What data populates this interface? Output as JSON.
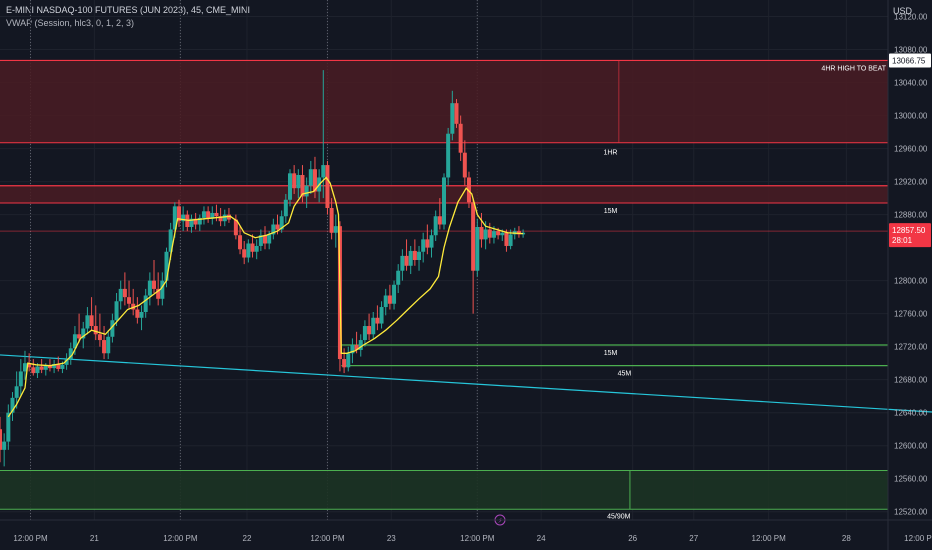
{
  "header": {
    "title": "E-MINI NASDAQ-100 FUTURES (JUN 2023), 45, CME_MINI",
    "study": "VWAP (Session, hlc3, 0, 1, 2, 3)",
    "currency": "USD"
  },
  "colors": {
    "background": "#131722",
    "up": "#26a69a",
    "down": "#ef5350",
    "vwap": "#ffeb3b",
    "resistance_fill": "#4a1c23",
    "resistance_line": "#f23645",
    "support_fill": "#1c3323",
    "support_line": "#4caf50",
    "trendline": "#26c6da",
    "price_badge": "#f23645"
  },
  "chart_data": {
    "type": "candlestick",
    "symbol": "E-MINI NASDAQ-100 FUTURES (JUN 2023)",
    "interval": "45",
    "ylim": [
      12510,
      13140
    ],
    "x_range": [
      0,
      32
    ],
    "y_ticks": [
      13120,
      13080,
      13040,
      13000,
      12960,
      12920,
      12880,
      12800,
      12760,
      12720,
      12680,
      12640,
      12600,
      12560,
      12520
    ],
    "x_ticks": [
      {
        "x": 1.1,
        "label": "12:00 PM"
      },
      {
        "x": 3.4,
        "label": "21"
      },
      {
        "x": 6.5,
        "label": "12:00 PM"
      },
      {
        "x": 8.9,
        "label": "22"
      },
      {
        "x": 11.8,
        "label": "12:00 PM"
      },
      {
        "x": 14.1,
        "label": "23"
      },
      {
        "x": 17.2,
        "label": "12:00 PM"
      },
      {
        "x": 19.5,
        "label": "24"
      },
      {
        "x": 22.8,
        "label": "26"
      },
      {
        "x": 25.0,
        "label": "27"
      },
      {
        "x": 27.7,
        "label": "12:00 PM"
      },
      {
        "x": 30.5,
        "label": "28"
      },
      {
        "x": 33.2,
        "label": "12:00 PM"
      }
    ],
    "session_lines_x": [
      1.1,
      6.5,
      11.8,
      17.2
    ],
    "current_price": "12857.50",
    "countdown": "28:01",
    "high_label_price": "13066.75",
    "zones": [
      {
        "label": "4HR HIGH TO BEAT",
        "type": "resistance",
        "y_top": 13066.75,
        "y_bottom": 12967
      },
      {
        "label": "15M",
        "type": "resistance",
        "y_top": 12915,
        "y_bottom": 12894
      }
    ],
    "zone_labels": [
      {
        "label": "1HR",
        "x": 22.0,
        "y": 12953
      },
      {
        "label": "15M",
        "x": 22.0,
        "y": 12882
      },
      {
        "label": "15M",
        "x": 22.0,
        "y": 12710
      },
      {
        "label": "45M",
        "x": 22.5,
        "y": 12685
      },
      {
        "label": "45/90M",
        "x": 22.3,
        "y": 12512
      }
    ],
    "support_lines": [
      12722,
      12697
    ],
    "support_zone": {
      "y_top": 12570,
      "y_bottom": 12523
    },
    "trendline": {
      "x1": 0,
      "y1": 12710,
      "x2": 34,
      "y2": 12640
    },
    "candles": [
      {
        "x": 0.0,
        "o": 12620,
        "h": 12635,
        "l": 12580,
        "c": 12595
      },
      {
        "x": 0.15,
        "o": 12595,
        "h": 12615,
        "l": 12575,
        "c": 12605
      },
      {
        "x": 0.3,
        "o": 12605,
        "h": 12650,
        "l": 12595,
        "c": 12640
      },
      {
        "x": 0.45,
        "o": 12640,
        "h": 12665,
        "l": 12630,
        "c": 12658
      },
      {
        "x": 0.6,
        "o": 12658,
        "h": 12690,
        "l": 12645,
        "c": 12672
      },
      {
        "x": 0.75,
        "o": 12672,
        "h": 12705,
        "l": 12660,
        "c": 12690
      },
      {
        "x": 0.9,
        "o": 12690,
        "h": 12715,
        "l": 12680,
        "c": 12700
      },
      {
        "x": 1.05,
        "o": 12700,
        "h": 12712,
        "l": 12690,
        "c": 12695
      },
      {
        "x": 1.2,
        "o": 12695,
        "h": 12705,
        "l": 12685,
        "c": 12688
      },
      {
        "x": 1.35,
        "o": 12688,
        "h": 12700,
        "l": 12682,
        "c": 12696
      },
      {
        "x": 1.5,
        "o": 12696,
        "h": 12705,
        "l": 12688,
        "c": 12692
      },
      {
        "x": 1.65,
        "o": 12692,
        "h": 12700,
        "l": 12685,
        "c": 12697
      },
      {
        "x": 1.8,
        "o": 12697,
        "h": 12705,
        "l": 12690,
        "c": 12694
      },
      {
        "x": 1.95,
        "o": 12694,
        "h": 12704,
        "l": 12688,
        "c": 12699
      },
      {
        "x": 2.1,
        "o": 12699,
        "h": 12708,
        "l": 12690,
        "c": 12693
      },
      {
        "x": 2.25,
        "o": 12693,
        "h": 12702,
        "l": 12688,
        "c": 12698
      },
      {
        "x": 2.4,
        "o": 12698,
        "h": 12712,
        "l": 12692,
        "c": 12705
      },
      {
        "x": 2.55,
        "o": 12705,
        "h": 12725,
        "l": 12698,
        "c": 12718
      },
      {
        "x": 2.7,
        "o": 12718,
        "h": 12745,
        "l": 12710,
        "c": 12735
      },
      {
        "x": 2.85,
        "o": 12735,
        "h": 12760,
        "l": 12725,
        "c": 12730
      },
      {
        "x": 3.0,
        "o": 12730,
        "h": 12750,
        "l": 12718,
        "c": 12742
      },
      {
        "x": 3.15,
        "o": 12742,
        "h": 12768,
        "l": 12735,
        "c": 12758
      },
      {
        "x": 3.3,
        "o": 12758,
        "h": 12780,
        "l": 12740,
        "c": 12745
      },
      {
        "x": 3.45,
        "o": 12745,
        "h": 12770,
        "l": 12728,
        "c": 12735
      },
      {
        "x": 3.6,
        "o": 12735,
        "h": 12760,
        "l": 12720,
        "c": 12728
      },
      {
        "x": 3.75,
        "o": 12728,
        "h": 12745,
        "l": 12705,
        "c": 12712
      },
      {
        "x": 3.9,
        "o": 12712,
        "h": 12740,
        "l": 12705,
        "c": 12732
      },
      {
        "x": 4.05,
        "o": 12732,
        "h": 12760,
        "l": 12725,
        "c": 12752
      },
      {
        "x": 4.2,
        "o": 12752,
        "h": 12785,
        "l": 12745,
        "c": 12775
      },
      {
        "x": 4.35,
        "o": 12775,
        "h": 12800,
        "l": 12765,
        "c": 12790
      },
      {
        "x": 4.5,
        "o": 12790,
        "h": 12810,
        "l": 12770,
        "c": 12780
      },
      {
        "x": 4.65,
        "o": 12780,
        "h": 12800,
        "l": 12765,
        "c": 12772
      },
      {
        "x": 4.8,
        "o": 12772,
        "h": 12790,
        "l": 12758,
        "c": 12765
      },
      {
        "x": 4.95,
        "o": 12765,
        "h": 12780,
        "l": 12748,
        "c": 12755
      },
      {
        "x": 5.1,
        "o": 12755,
        "h": 12770,
        "l": 12740,
        "c": 12762
      },
      {
        "x": 5.25,
        "o": 12762,
        "h": 12790,
        "l": 12755,
        "c": 12782
      },
      {
        "x": 5.4,
        "o": 12782,
        "h": 12810,
        "l": 12770,
        "c": 12800
      },
      {
        "x": 5.55,
        "o": 12800,
        "h": 12825,
        "l": 12785,
        "c": 12790
      },
      {
        "x": 5.7,
        "o": 12790,
        "h": 12810,
        "l": 12770,
        "c": 12778
      },
      {
        "x": 5.85,
        "o": 12778,
        "h": 12810,
        "l": 12770,
        "c": 12800
      },
      {
        "x": 6.0,
        "o": 12800,
        "h": 12840,
        "l": 12792,
        "c": 12835
      },
      {
        "x": 6.15,
        "o": 12835,
        "h": 12870,
        "l": 12825,
        "c": 12862
      },
      {
        "x": 6.3,
        "o": 12862,
        "h": 12895,
        "l": 12852,
        "c": 12890
      },
      {
        "x": 6.45,
        "o": 12890,
        "h": 12898,
        "l": 12865,
        "c": 12872
      },
      {
        "x": 6.6,
        "o": 12872,
        "h": 12890,
        "l": 12860,
        "c": 12880
      },
      {
        "x": 6.75,
        "o": 12880,
        "h": 12885,
        "l": 12860,
        "c": 12865
      },
      {
        "x": 6.9,
        "o": 12865,
        "h": 12880,
        "l": 12858,
        "c": 12875
      },
      {
        "x": 7.05,
        "o": 12875,
        "h": 12882,
        "l": 12862,
        "c": 12868
      },
      {
        "x": 7.2,
        "o": 12868,
        "h": 12880,
        "l": 12860,
        "c": 12876
      },
      {
        "x": 7.35,
        "o": 12876,
        "h": 12890,
        "l": 12868,
        "c": 12884
      },
      {
        "x": 7.5,
        "o": 12884,
        "h": 12890,
        "l": 12870,
        "c": 12875
      },
      {
        "x": 7.65,
        "o": 12875,
        "h": 12890,
        "l": 12868,
        "c": 12882
      },
      {
        "x": 7.8,
        "o": 12882,
        "h": 12892,
        "l": 12872,
        "c": 12878
      },
      {
        "x": 7.95,
        "o": 12878,
        "h": 12888,
        "l": 12866,
        "c": 12872
      },
      {
        "x": 8.1,
        "o": 12872,
        "h": 12886,
        "l": 12866,
        "c": 12880
      },
      {
        "x": 8.25,
        "o": 12880,
        "h": 12888,
        "l": 12870,
        "c": 12874
      },
      {
        "x": 8.5,
        "o": 12874,
        "h": 12880,
        "l": 12850,
        "c": 12855
      },
      {
        "x": 8.65,
        "o": 12855,
        "h": 12866,
        "l": 12832,
        "c": 12838
      },
      {
        "x": 8.8,
        "o": 12838,
        "h": 12848,
        "l": 12820,
        "c": 12828
      },
      {
        "x": 8.95,
        "o": 12828,
        "h": 12850,
        "l": 12822,
        "c": 12845
      },
      {
        "x": 9.1,
        "o": 12845,
        "h": 12856,
        "l": 12828,
        "c": 12835
      },
      {
        "x": 9.25,
        "o": 12835,
        "h": 12850,
        "l": 12826,
        "c": 12842
      },
      {
        "x": 9.4,
        "o": 12842,
        "h": 12862,
        "l": 12836,
        "c": 12855
      },
      {
        "x": 9.55,
        "o": 12855,
        "h": 12866,
        "l": 12838,
        "c": 12845
      },
      {
        "x": 9.7,
        "o": 12845,
        "h": 12860,
        "l": 12838,
        "c": 12856
      },
      {
        "x": 9.85,
        "o": 12856,
        "h": 12875,
        "l": 12850,
        "c": 12868
      },
      {
        "x": 10.0,
        "o": 12868,
        "h": 12880,
        "l": 12856,
        "c": 12862
      },
      {
        "x": 10.15,
        "o": 12862,
        "h": 12885,
        "l": 12858,
        "c": 12878
      },
      {
        "x": 10.3,
        "o": 12878,
        "h": 12905,
        "l": 12870,
        "c": 12898
      },
      {
        "x": 10.45,
        "o": 12898,
        "h": 12935,
        "l": 12890,
        "c": 12930
      },
      {
        "x": 10.6,
        "o": 12930,
        "h": 12940,
        "l": 12905,
        "c": 12912
      },
      {
        "x": 10.75,
        "o": 12912,
        "h": 12935,
        "l": 12900,
        "c": 12928
      },
      {
        "x": 10.9,
        "o": 12928,
        "h": 12940,
        "l": 12895,
        "c": 12902
      },
      {
        "x": 11.05,
        "o": 12902,
        "h": 12925,
        "l": 12888,
        "c": 12915
      },
      {
        "x": 11.2,
        "o": 12915,
        "h": 12945,
        "l": 12905,
        "c": 12935
      },
      {
        "x": 11.35,
        "o": 12935,
        "h": 12950,
        "l": 12900,
        "c": 12908
      },
      {
        "x": 11.5,
        "o": 12908,
        "h": 12935,
        "l": 12895,
        "c": 12925
      },
      {
        "x": 11.65,
        "o": 12925,
        "h": 13055,
        "l": 12900,
        "c": 12940
      },
      {
        "x": 11.8,
        "o": 12940,
        "h": 12945,
        "l": 12880,
        "c": 12888
      },
      {
        "x": 11.95,
        "o": 12888,
        "h": 12900,
        "l": 12850,
        "c": 12858
      },
      {
        "x": 12.1,
        "o": 12858,
        "h": 12880,
        "l": 12840,
        "c": 12866
      },
      {
        "x": 12.25,
        "o": 12866,
        "h": 12872,
        "l": 12690,
        "c": 12705
      },
      {
        "x": 12.4,
        "o": 12705,
        "h": 12718,
        "l": 12688,
        "c": 12695
      },
      {
        "x": 12.55,
        "o": 12695,
        "h": 12720,
        "l": 12690,
        "c": 12712
      },
      {
        "x": 12.7,
        "o": 12712,
        "h": 12730,
        "l": 12700,
        "c": 12722
      },
      {
        "x": 12.85,
        "o": 12722,
        "h": 12738,
        "l": 12712,
        "c": 12716
      },
      {
        "x": 13.0,
        "o": 12716,
        "h": 12735,
        "l": 12708,
        "c": 12728
      },
      {
        "x": 13.15,
        "o": 12728,
        "h": 12752,
        "l": 12720,
        "c": 12745
      },
      {
        "x": 13.3,
        "o": 12745,
        "h": 12760,
        "l": 12728,
        "c": 12735
      },
      {
        "x": 13.45,
        "o": 12735,
        "h": 12762,
        "l": 12730,
        "c": 12755
      },
      {
        "x": 13.6,
        "o": 12755,
        "h": 12770,
        "l": 12740,
        "c": 12748
      },
      {
        "x": 13.75,
        "o": 12748,
        "h": 12775,
        "l": 12742,
        "c": 12768
      },
      {
        "x": 13.9,
        "o": 12768,
        "h": 12790,
        "l": 12758,
        "c": 12782
      },
      {
        "x": 14.05,
        "o": 12782,
        "h": 12795,
        "l": 12765,
        "c": 12772
      },
      {
        "x": 14.2,
        "o": 12772,
        "h": 12800,
        "l": 12765,
        "c": 12795
      },
      {
        "x": 14.35,
        "o": 12795,
        "h": 12820,
        "l": 12785,
        "c": 12812
      },
      {
        "x": 14.5,
        "o": 12812,
        "h": 12838,
        "l": 12800,
        "c": 12830
      },
      {
        "x": 14.65,
        "o": 12830,
        "h": 12850,
        "l": 12812,
        "c": 12818
      },
      {
        "x": 14.8,
        "o": 12818,
        "h": 12842,
        "l": 12808,
        "c": 12836
      },
      {
        "x": 14.95,
        "o": 12836,
        "h": 12850,
        "l": 12818,
        "c": 12825
      },
      {
        "x": 15.1,
        "o": 12825,
        "h": 12842,
        "l": 12812,
        "c": 12835
      },
      {
        "x": 15.25,
        "o": 12835,
        "h": 12858,
        "l": 12822,
        "c": 12850
      },
      {
        "x": 15.4,
        "o": 12850,
        "h": 12868,
        "l": 12832,
        "c": 12840
      },
      {
        "x": 15.55,
        "o": 12840,
        "h": 12862,
        "l": 12828,
        "c": 12855
      },
      {
        "x": 15.7,
        "o": 12855,
        "h": 12885,
        "l": 12848,
        "c": 12878
      },
      {
        "x": 15.85,
        "o": 12878,
        "h": 12900,
        "l": 12862,
        "c": 12868
      },
      {
        "x": 16.0,
        "o": 12868,
        "h": 12930,
        "l": 12862,
        "c": 12925
      },
      {
        "x": 16.15,
        "o": 12925,
        "h": 12985,
        "l": 12915,
        "c": 12978
      },
      {
        "x": 16.3,
        "o": 12978,
        "h": 13030,
        "l": 12970,
        "c": 13015
      },
      {
        "x": 16.45,
        "o": 13015,
        "h": 13020,
        "l": 12985,
        "c": 12990
      },
      {
        "x": 16.6,
        "o": 12990,
        "h": 13000,
        "l": 12945,
        "c": 12955
      },
      {
        "x": 16.75,
        "o": 12955,
        "h": 12970,
        "l": 12915,
        "c": 12925
      },
      {
        "x": 16.9,
        "o": 12925,
        "h": 12932,
        "l": 12888,
        "c": 12895
      },
      {
        "x": 17.05,
        "o": 12895,
        "h": 12900,
        "l": 12760,
        "c": 12812
      },
      {
        "x": 17.2,
        "o": 12812,
        "h": 12875,
        "l": 12805,
        "c": 12865
      },
      {
        "x": 17.35,
        "o": 12865,
        "h": 12882,
        "l": 12840,
        "c": 12850
      },
      {
        "x": 17.5,
        "o": 12850,
        "h": 12872,
        "l": 12838,
        "c": 12862
      },
      {
        "x": 17.65,
        "o": 12862,
        "h": 12870,
        "l": 12845,
        "c": 12852
      },
      {
        "x": 17.8,
        "o": 12852,
        "h": 12866,
        "l": 12845,
        "c": 12860
      },
      {
        "x": 17.95,
        "o": 12860,
        "h": 12864,
        "l": 12850,
        "c": 12855
      },
      {
        "x": 18.1,
        "o": 12855,
        "h": 12862,
        "l": 12848,
        "c": 12858
      },
      {
        "x": 18.25,
        "o": 12858,
        "h": 12862,
        "l": 12835,
        "c": 12842
      },
      {
        "x": 18.4,
        "o": 12842,
        "h": 12862,
        "l": 12838,
        "c": 12856
      },
      {
        "x": 18.55,
        "o": 12856,
        "h": 12864,
        "l": 12850,
        "c": 12860
      },
      {
        "x": 18.7,
        "o": 12860,
        "h": 12866,
        "l": 12852,
        "c": 12856
      },
      {
        "x": 18.85,
        "o": 12856,
        "h": 12862,
        "l": 12852,
        "c": 12858
      }
    ],
    "vwap": [
      [
        0.3,
        12635
      ],
      [
        0.6,
        12650
      ],
      [
        0.9,
        12670
      ],
      [
        1.0,
        12700
      ],
      [
        1.3,
        12698
      ],
      [
        1.8,
        12697
      ],
      [
        2.3,
        12700
      ],
      [
        2.6,
        12710
      ],
      [
        2.9,
        12730
      ],
      [
        3.3,
        12740
      ],
      [
        3.8,
        12735
      ],
      [
        4.2,
        12750
      ],
      [
        4.6,
        12765
      ],
      [
        5.0,
        12770
      ],
      [
        5.4,
        12780
      ],
      [
        5.8,
        12790
      ],
      [
        6.0,
        12800
      ],
      [
        6.2,
        12840
      ],
      [
        6.4,
        12875
      ],
      [
        6.8,
        12873
      ],
      [
        7.4,
        12875
      ],
      [
        8.3,
        12878
      ],
      [
        8.55,
        12872
      ],
      [
        8.8,
        12858
      ],
      [
        9.2,
        12852
      ],
      [
        9.6,
        12855
      ],
      [
        10.0,
        12860
      ],
      [
        10.4,
        12870
      ],
      [
        10.6,
        12890
      ],
      [
        10.9,
        12905
      ],
      [
        11.3,
        12908
      ],
      [
        11.55,
        12918
      ],
      [
        11.75,
        12925
      ],
      [
        11.9,
        12918
      ],
      [
        12.1,
        12895
      ],
      [
        12.2,
        12880
      ],
      [
        12.3,
        12712
      ],
      [
        12.5,
        12712
      ],
      [
        12.8,
        12715
      ],
      [
        13.1,
        12722
      ],
      [
        13.5,
        12730
      ],
      [
        13.9,
        12740
      ],
      [
        14.3,
        12752
      ],
      [
        14.7,
        12765
      ],
      [
        15.1,
        12778
      ],
      [
        15.5,
        12790
      ],
      [
        15.8,
        12805
      ],
      [
        16.0,
        12840
      ],
      [
        16.2,
        12865
      ],
      [
        16.5,
        12895
      ],
      [
        16.8,
        12912
      ],
      [
        17.0,
        12905
      ],
      [
        17.2,
        12880
      ],
      [
        17.5,
        12866
      ],
      [
        17.9,
        12862
      ],
      [
        18.3,
        12858
      ],
      [
        18.85,
        12857
      ]
    ]
  }
}
